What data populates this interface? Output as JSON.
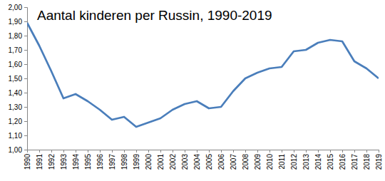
{
  "chart_data": {
    "type": "line",
    "title": "Aantal kinderen per Russin, 1990-2019",
    "categories": [
      "1990",
      "1991",
      "1992",
      "1993",
      "1994",
      "1995",
      "1996",
      "1997",
      "1998",
      "1999",
      "2000",
      "2001",
      "2002",
      "2003",
      "2004",
      "2005",
      "2006",
      "2007",
      "2008",
      "2009",
      "2010",
      "2011",
      "2012",
      "2013",
      "2014",
      "2015",
      "2016",
      "2017",
      "2018",
      "2019"
    ],
    "values": [
      1.89,
      1.73,
      1.55,
      1.36,
      1.39,
      1.34,
      1.28,
      1.21,
      1.23,
      1.16,
      1.19,
      1.22,
      1.28,
      1.32,
      1.34,
      1.29,
      1.3,
      1.41,
      1.5,
      1.54,
      1.57,
      1.58,
      1.69,
      1.7,
      1.75,
      1.77,
      1.76,
      1.62,
      1.57,
      1.5
    ],
    "color": "#4a7ebb",
    "ylim": [
      1,
      2
    ],
    "yticks": [
      {
        "value": 1,
        "label": "1,00"
      },
      {
        "value": 1.1,
        "label": "1,10"
      },
      {
        "value": 1.2,
        "label": "1,20"
      },
      {
        "value": 1.3,
        "label": "1,30"
      },
      {
        "value": 1.4,
        "label": "1,40"
      },
      {
        "value": 1.5,
        "label": "1,50"
      },
      {
        "value": 1.6,
        "label": "1,60"
      },
      {
        "value": 1.7,
        "label": "1,70"
      },
      {
        "value": 1.8,
        "label": "1,80"
      },
      {
        "value": 1.9,
        "label": "1,90"
      },
      {
        "value": 2,
        "label": "2,00"
      }
    ],
    "grid": false
  }
}
